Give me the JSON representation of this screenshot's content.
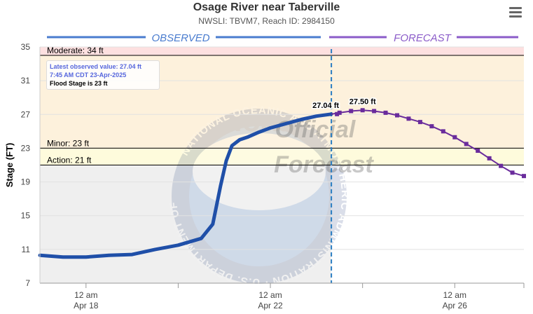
{
  "header": {
    "title": "Osage River near Taberville",
    "subtitle": "NWSLI: TBVM7, Reach ID: 2984150"
  },
  "sections": {
    "observed": "OBSERVED",
    "forecast": "FORECAST"
  },
  "tooltip": {
    "line1": "Latest observed value: 27.04 ft",
    "line2": "7:45 AM CDT 23-Apr-2025",
    "line3": "Flood Stage is 23 ft"
  },
  "watermark": {
    "logo": "noaa",
    "line1": "Official",
    "line2": "Forecast",
    "ring_text": "NATIONAL OCEANIC AND ATMOSPHERIC ADMINISTRATION · U.S. DEPARTMENT OF COMMERCE"
  },
  "colors": {
    "observed": "#1f4fa8",
    "forecast": "#6a2c9c",
    "moderate_band": "#fde0e0",
    "minor_band": "#fdf1dc",
    "action_band": "#fefbdc",
    "observed_bg": "#efefef",
    "section_observed": "#4a7ccf",
    "section_forecast": "#8b5cc9"
  },
  "chart_data": {
    "type": "line",
    "title": "Osage River near Taberville",
    "ylabel": "Stage (FT)",
    "ylim": [
      7,
      35
    ],
    "yticks": [
      7,
      11,
      15,
      19,
      23,
      27,
      31,
      35
    ],
    "xlim": [
      "2025-04-17T00:00",
      "2025-04-27T12:00"
    ],
    "xticks": [
      {
        "t": "2025-04-18T00:00",
        "line1": "12 am",
        "line2": "Apr 18"
      },
      {
        "t": "2025-04-22T00:00",
        "line1": "12 am",
        "line2": "Apr 22"
      },
      {
        "t": "2025-04-26T00:00",
        "line1": "12 am",
        "line2": "Apr 26"
      }
    ],
    "minor_xticks": [
      "2025-04-20T00:00",
      "2025-04-24T00:00"
    ],
    "thresholds": [
      {
        "name": "Moderate",
        "label": "Moderate: 34 ft",
        "value": 34
      },
      {
        "name": "Minor",
        "label": "Minor: 23 ft",
        "value": 23
      },
      {
        "name": "Action",
        "label": "Action: 21 ft",
        "value": 21
      }
    ],
    "current_time": "2025-04-23T07:45",
    "series": [
      {
        "name": "Observed",
        "x": [
          "2025-04-17T00:00",
          "2025-04-17T12:00",
          "2025-04-18T00:00",
          "2025-04-18T12:00",
          "2025-04-19T00:00",
          "2025-04-19T12:00",
          "2025-04-20T00:00",
          "2025-04-20T12:00",
          "2025-04-20T18:00",
          "2025-04-20T22:00",
          "2025-04-21T01:00",
          "2025-04-21T04:00",
          "2025-04-21T08:00",
          "2025-04-21T12:00",
          "2025-04-21T18:00",
          "2025-04-22T00:00",
          "2025-04-22T08:00",
          "2025-04-22T16:00",
          "2025-04-23T00:00",
          "2025-04-23T07:45"
        ],
        "y": [
          10.3,
          10.1,
          10.1,
          10.3,
          10.4,
          11.0,
          11.5,
          12.3,
          14.0,
          18.5,
          21.5,
          23.3,
          24.0,
          24.3,
          24.9,
          25.4,
          25.9,
          26.4,
          26.8,
          27.04
        ]
      },
      {
        "name": "Forecast",
        "x": [
          "2025-04-23T12:00",
          "2025-04-23T18:00",
          "2025-04-24T00:00",
          "2025-04-24T06:00",
          "2025-04-24T12:00",
          "2025-04-24T18:00",
          "2025-04-25T00:00",
          "2025-04-25T06:00",
          "2025-04-25T12:00",
          "2025-04-25T18:00",
          "2025-04-26T00:00",
          "2025-04-26T06:00",
          "2025-04-26T12:00",
          "2025-04-26T18:00",
          "2025-04-27T00:00",
          "2025-04-27T06:00",
          "2025-04-27T12:00"
        ],
        "y": [
          27.2,
          27.4,
          27.5,
          27.4,
          27.2,
          26.9,
          26.5,
          26.1,
          25.6,
          25.0,
          24.3,
          23.5,
          22.7,
          21.8,
          20.9,
          20.1,
          19.7
        ]
      }
    ],
    "annotations": [
      {
        "label": "27.04 ft",
        "x": "2025-04-23T07:45",
        "y": 27.04
      },
      {
        "label": "27.50 ft",
        "x": "2025-04-24T00:00",
        "y": 27.5
      }
    ]
  }
}
